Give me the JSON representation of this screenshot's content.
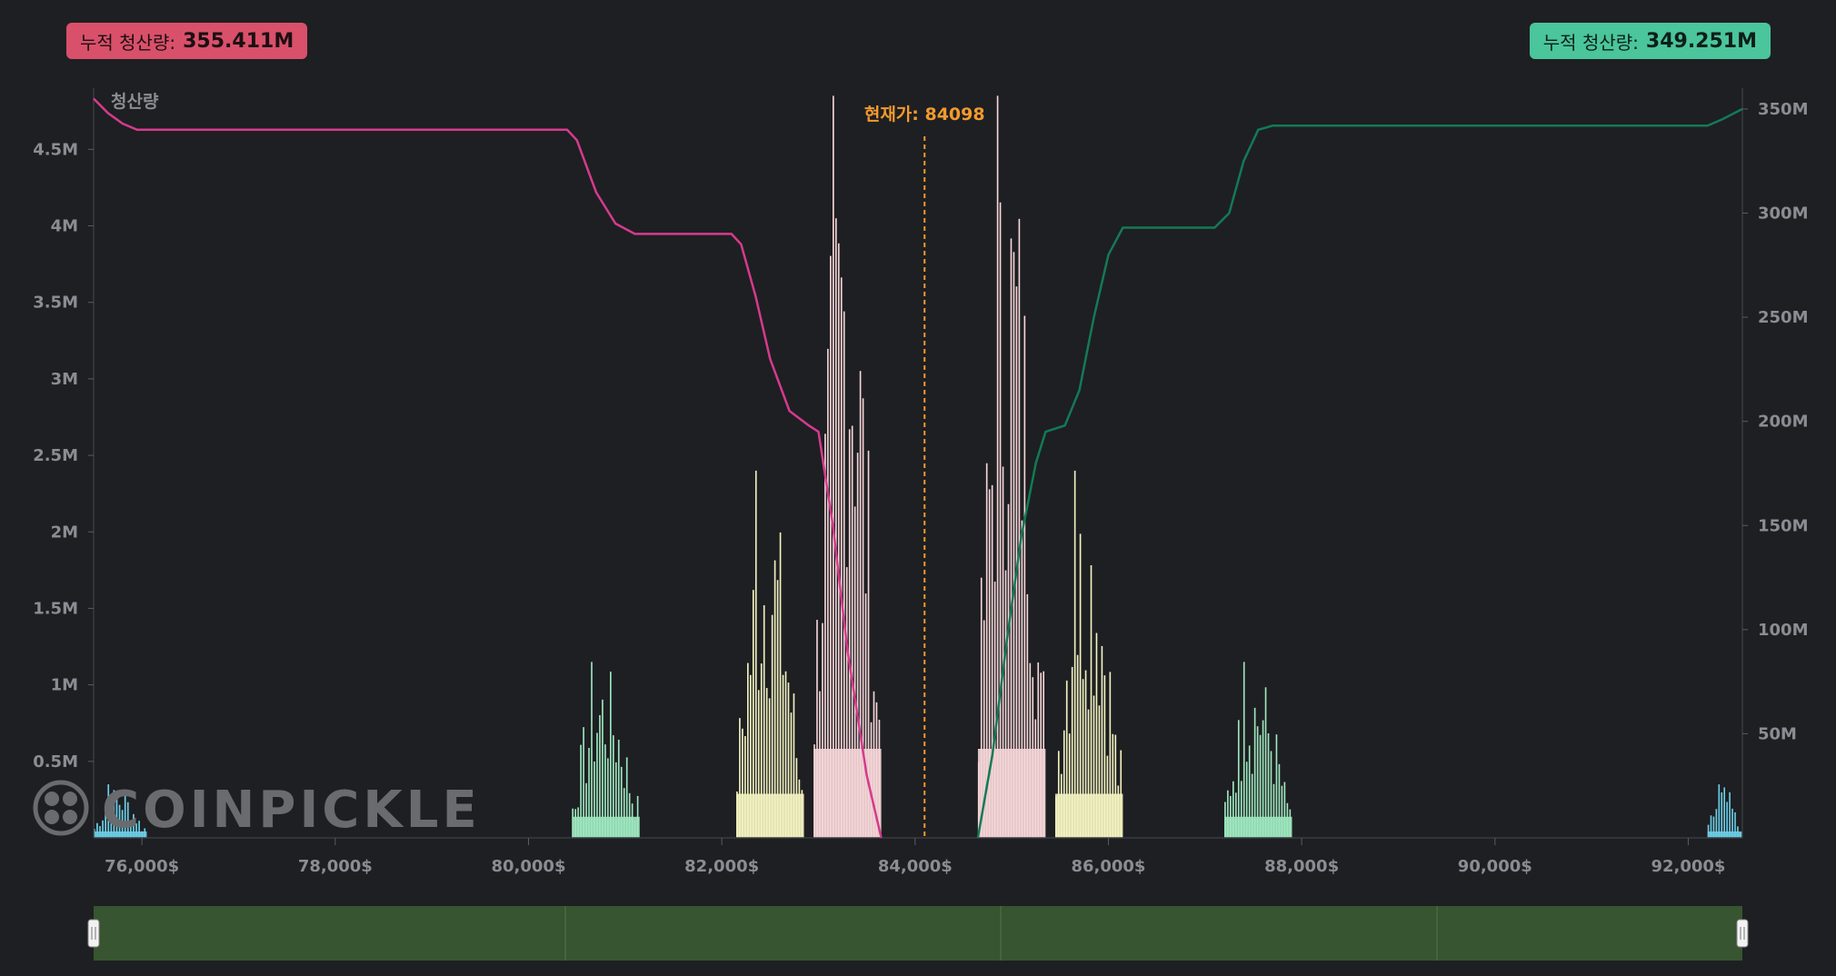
{
  "badges": {
    "left": {
      "label": "누적 청산량:",
      "value": "355.411M",
      "color": "#d9506a"
    },
    "right": {
      "label": "누적 청산량:",
      "value": "349.251M",
      "color": "#4bc59b"
    }
  },
  "watermark": "COINPICKLE",
  "chart_data": {
    "type": "bar",
    "series_title": "청산량",
    "current_price_label": "현재가: 84098",
    "current_price": 84098,
    "x_range": [
      75500,
      92560
    ],
    "x_ticks": [
      76000,
      78000,
      80000,
      82000,
      84000,
      86000,
      88000,
      90000,
      92000
    ],
    "x_tick_labels": [
      "76,000$",
      "78,000$",
      "80,000$",
      "82,000$",
      "84,000$",
      "86,000$",
      "88,000$",
      "90,000$",
      "92,000$"
    ],
    "y_left_range": [
      0,
      4.9
    ],
    "y_left_ticks": [
      0.5,
      1,
      1.5,
      2,
      2.5,
      3,
      3.5,
      4,
      4.5
    ],
    "y_left_tick_labels": [
      "0.5M",
      "1M",
      "1.5M",
      "2M",
      "2.5M",
      "3M",
      "3.5M",
      "4M",
      "4.5M"
    ],
    "y_right_range": [
      0,
      360
    ],
    "y_right_ticks": [
      50,
      100,
      150,
      200,
      250,
      300,
      350
    ],
    "y_right_tick_labels": [
      "50M",
      "100M",
      "150M",
      "200M",
      "250M",
      "300M",
      "350M"
    ],
    "bar_clusters": [
      {
        "x_start": 75500,
        "x_end": 76050,
        "peak": 0.35,
        "color": "#6ccfe8"
      },
      {
        "x_start": 80450,
        "x_end": 81150,
        "peak": 1.15,
        "color": "#9ee8c0"
      },
      {
        "x_start": 82150,
        "x_end": 82850,
        "peak": 2.4,
        "color": "#f3f3c1"
      },
      {
        "x_start": 82950,
        "x_end": 83650,
        "peak": 4.85,
        "color": "#f6d6d8"
      },
      {
        "x_start": 84650,
        "x_end": 85350,
        "peak": 4.85,
        "color": "#f6d6d8"
      },
      {
        "x_start": 85450,
        "x_end": 86150,
        "peak": 2.4,
        "color": "#f3f3c1"
      },
      {
        "x_start": 87200,
        "x_end": 87900,
        "peak": 1.15,
        "color": "#9ee8c0"
      },
      {
        "x_start": 92200,
        "x_end": 92560,
        "peak": 0.35,
        "color": "#6ccfe8"
      }
    ],
    "cumulative_short": {
      "color": "#d63a8e",
      "x": [
        75500,
        75650,
        75800,
        75950,
        76200,
        80400,
        80500,
        80700,
        80900,
        81100,
        82100,
        82200,
        82350,
        82500,
        82700,
        82900,
        83000,
        83150,
        83300,
        83500,
        83650
      ],
      "y": [
        355,
        348,
        343,
        340,
        340,
        340,
        335,
        310,
        295,
        290,
        290,
        285,
        260,
        230,
        205,
        198,
        195,
        150,
        90,
        30,
        0
      ]
    },
    "cumulative_long": {
      "color": "#137a56",
      "x": [
        84650,
        84800,
        84950,
        85100,
        85250,
        85350,
        85550,
        85700,
        85850,
        86000,
        86150,
        87100,
        87250,
        87400,
        87550,
        87700,
        92200,
        92350,
        92560
      ],
      "y": [
        0,
        40,
        95,
        145,
        180,
        195,
        198,
        215,
        250,
        280,
        293,
        293,
        300,
        325,
        340,
        342,
        342,
        345,
        350
      ]
    }
  },
  "navigator": {
    "bg_color": "#375530"
  }
}
